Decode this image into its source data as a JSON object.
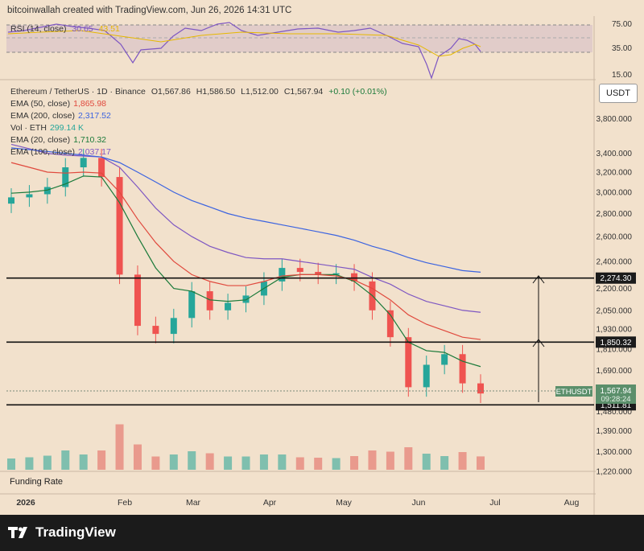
{
  "caption": "bitcoinwallah created with TradingView.com, Jun 26, 2026 14:31 UTC",
  "rsi": {
    "label": "RSI (14, close)",
    "value": "30.65",
    "ma_value": "43.51",
    "ticks": [
      "75.00",
      "35.00",
      "15.00"
    ]
  },
  "symbol": {
    "name": "Ethereum / TetherUS · 1D · Binance",
    "o": "O1,567.86",
    "h": "H1,586.50",
    "l": "L1,512.00",
    "c": "C1,567.94",
    "chg": "+0.10 (+0.01%)"
  },
  "indicators": [
    {
      "label": "EMA (50, close)",
      "value": "1,865.98",
      "color": "#e0493d"
    },
    {
      "label": "EMA (200, close)",
      "value": "2,317.52",
      "color": "#3b63e0"
    },
    {
      "label": "Vol · ETH",
      "value": "299.14 K",
      "color": "#26a69a"
    },
    {
      "label": "EMA (20, close)",
      "value": "1,710.32",
      "color": "#1b7a3a"
    },
    {
      "label": "EMA (100, close)",
      "value": "2,037.17",
      "color": "#7e57c2"
    }
  ],
  "currency": "USDT",
  "price_axis": [
    "3,800.000",
    "3,400.000",
    "3,200.000",
    "3,000.000",
    "2,800.000",
    "2,600.000",
    "2,400.000",
    "2,200.000",
    "2,050.000",
    "1,930.000",
    "1,810.000",
    "1,690.000",
    "1,580.000",
    "1,480.000",
    "1,390.000",
    "1,300.000",
    "1,220.000"
  ],
  "levels": [
    {
      "value": 2274.3,
      "label": "2,274.30"
    },
    {
      "value": 1850.32,
      "label": "1,850.32"
    },
    {
      "value": 1511.81,
      "label": "1,511.81"
    }
  ],
  "last_price": {
    "symbol": "ETHUSDT",
    "price": "1,567.94",
    "countdown": "09:28:24"
  },
  "time_axis": [
    "2026",
    "Feb",
    "Mar",
    "Apr",
    "May",
    "Jun",
    "Jul",
    "Aug"
  ],
  "funding_label": "Funding Rate",
  "brand": "TradingView",
  "chart_data": {
    "type": "candlestick",
    "scale": "log",
    "ylim": [
      1220,
      4300
    ],
    "x": [
      "Dec 28",
      "Jan 4",
      "Jan 11",
      "Jan 18",
      "Jan 25",
      "Feb 1",
      "Feb 8",
      "Feb 15",
      "Feb 22",
      "Mar 1",
      "Mar 8",
      "Mar 15",
      "Mar 22",
      "Mar 29",
      "Apr 5",
      "Apr 12",
      "Apr 19",
      "Apr 26",
      "May 3",
      "May 10",
      "May 17",
      "May 24",
      "May 31",
      "Jun 7",
      "Jun 14",
      "Jun 21",
      "Jun 26"
    ],
    "close": [
      2950,
      2980,
      3050,
      3250,
      3350,
      3150,
      2300,
      1950,
      1900,
      2000,
      2180,
      2050,
      2100,
      2150,
      2250,
      2350,
      2320,
      2300,
      2310,
      2250,
      2050,
      1880,
      1600,
      1720,
      1780,
      1620,
      1568
    ],
    "series": [
      {
        "name": "EMA (20, close)",
        "values": [
          2990,
          3000,
          3020,
          3080,
          3160,
          3150,
          2900,
          2600,
          2350,
          2200,
          2180,
          2120,
          2110,
          2120,
          2200,
          2280,
          2300,
          2300,
          2300,
          2250,
          2150,
          2020,
          1850,
          1800,
          1790,
          1740,
          1710
        ]
      },
      {
        "name": "EMA (50, close)",
        "values": [
          3300,
          3250,
          3200,
          3190,
          3200,
          3190,
          3000,
          2750,
          2550,
          2400,
          2300,
          2250,
          2220,
          2220,
          2250,
          2290,
          2300,
          2300,
          2290,
          2260,
          2200,
          2120,
          2020,
          1960,
          1920,
          1880,
          1866
        ]
      },
      {
        "name": "EMA (100, close)",
        "values": [
          3500,
          3450,
          3400,
          3380,
          3370,
          3360,
          3250,
          3050,
          2850,
          2700,
          2600,
          2520,
          2470,
          2430,
          2420,
          2420,
          2400,
          2380,
          2360,
          2340,
          2280,
          2230,
          2160,
          2110,
          2080,
          2050,
          2037
        ]
      },
      {
        "name": "EMA (200, close)",
        "values": [
          3460,
          3440,
          3420,
          3400,
          3380,
          3360,
          3300,
          3200,
          3100,
          3000,
          2920,
          2860,
          2800,
          2760,
          2730,
          2700,
          2670,
          2640,
          2610,
          2570,
          2520,
          2480,
          2430,
          2390,
          2360,
          2330,
          2318
        ]
      }
    ],
    "levels": [
      2274.3,
      1850.32,
      1511.81
    ]
  }
}
